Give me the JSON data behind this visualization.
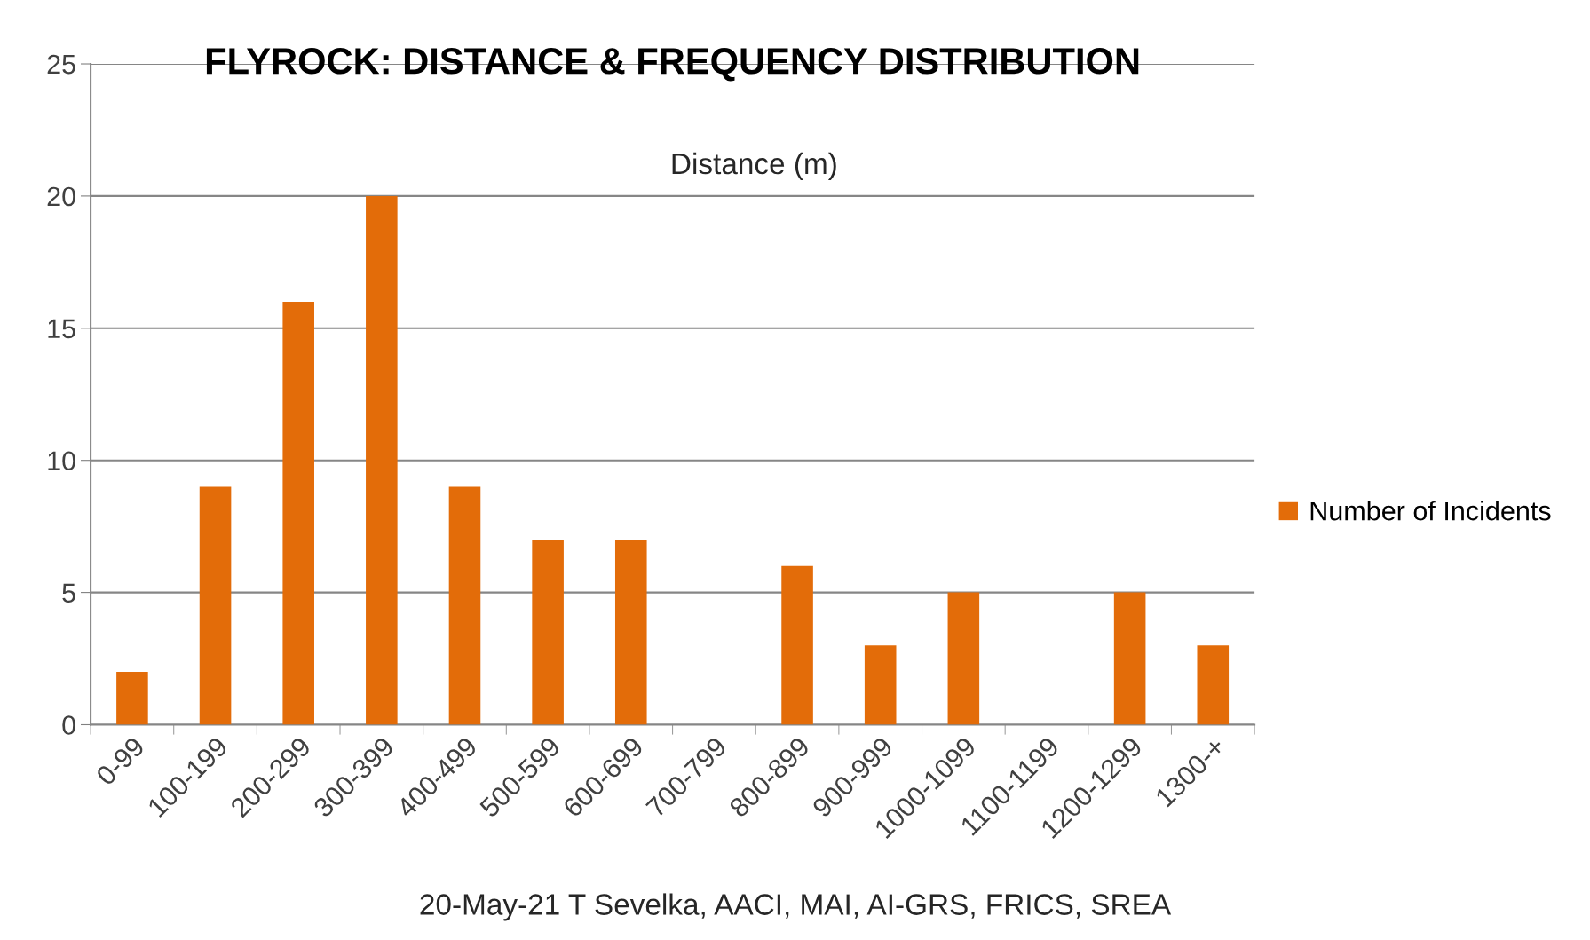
{
  "chart_data": {
    "type": "bar",
    "title": "FLYROCK: DISTANCE & FREQUENCY DISTRIBUTION",
    "categories": [
      "0-99",
      "100-199",
      "200-299",
      "300-399",
      "400-499",
      "500-599",
      "600-699",
      "700-799",
      "800-899",
      "900-999",
      "1000-1099",
      "1100-1199",
      "1200-1299",
      "1300-+"
    ],
    "series": [
      {
        "name": "Number of Incidents",
        "color": "#e36c09",
        "values": [
          2,
          9,
          16,
          20,
          9,
          7,
          7,
          0,
          6,
          3,
          5,
          0,
          5,
          3
        ]
      }
    ],
    "ylim": [
      0,
      25
    ],
    "yticks": [
      0,
      5,
      10,
      15,
      20,
      25
    ],
    "grid": "y",
    "legend": "right",
    "annotations": [
      "Distance (m)",
      "20-May-21 T Sevelka, AACI, MAI, AI-GRS, FRICS, SREA"
    ]
  }
}
